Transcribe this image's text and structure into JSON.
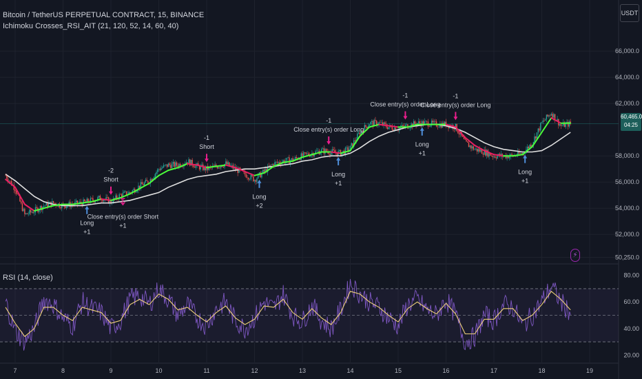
{
  "header": {
    "symbol": "Bitcoin / TetherUS PERPETUAL CONTRACT, 15, BINANCE",
    "indicator": "Ichimoku Crosses_RSI_AIT (21, 120, 52, 14, 60, 40)",
    "currency": "USDT"
  },
  "rsi_pane": {
    "label": "RSI (14, close)"
  },
  "price_tag": {
    "price": "60,465.0",
    "countdown": "04:25"
  },
  "icons": {
    "alert": "lightning-icon"
  },
  "colors": {
    "background": "#131722",
    "candle_up": "#26a69a",
    "candle_down": "#ef5350",
    "fast_line_up": "#4cff3a",
    "fast_line_down": "#e91e63",
    "slow_line": "#e0e0e0",
    "rsi_line": "#7e57c2",
    "rsi_ma": "#f0d27a",
    "signal_long": "#4f8fdb",
    "signal_short": "#e91e8c"
  },
  "chart_data": [
    {
      "type": "line",
      "title": "Bitcoin / TetherUS PERPETUAL CONTRACT, 15, BINANCE",
      "x_ticks": [
        "7",
        "8",
        "9",
        "10",
        "11",
        "12",
        "13",
        "14",
        "15",
        "16",
        "17",
        "18",
        "19"
      ],
      "y_ticks": [
        "66,000.0",
        "64,000.0",
        "62,000.0",
        "58,000.0",
        "56,000.0",
        "54,000.0",
        "52,000.0",
        "50,250.0"
      ],
      "ylim": [
        49800,
        67800
      ],
      "series": [
        {
          "role": "price",
          "x": [
            6.8,
            7.0,
            7.2,
            7.4,
            7.6,
            7.8,
            8.0,
            8.2,
            8.4,
            8.6,
            8.8,
            9.0,
            9.2,
            9.4,
            9.6,
            9.8,
            10.0,
            10.2,
            10.4,
            10.6,
            10.8,
            11.0,
            11.2,
            11.4,
            11.6,
            11.8,
            12.0,
            12.2,
            12.4,
            12.6,
            12.8,
            13.0,
            13.2,
            13.4,
            13.6,
            13.8,
            14.0,
            14.2,
            14.4,
            14.6,
            14.8,
            15.0,
            15.2,
            15.4,
            15.6,
            15.8,
            16.0,
            16.2,
            16.4,
            16.6,
            16.8,
            17.0,
            17.2,
            17.4,
            17.6,
            17.8,
            18.0,
            18.2,
            18.4,
            18.6
          ],
          "values": [
            56500,
            55500,
            53500,
            53800,
            54200,
            54400,
            54200,
            54300,
            54400,
            54600,
            54800,
            54500,
            55000,
            55200,
            55700,
            56100,
            57000,
            57300,
            57300,
            57600,
            57200,
            57000,
            57200,
            57400,
            57000,
            56600,
            56200,
            56800,
            57400,
            57600,
            57700,
            58000,
            58200,
            58400,
            58300,
            58200,
            58600,
            59800,
            60500,
            60500,
            60200,
            60100,
            60300,
            60500,
            60500,
            60400,
            60400,
            60200,
            59000,
            58500,
            58300,
            58000,
            58000,
            58000,
            58200,
            59000,
            60500,
            61300,
            60300,
            60465
          ]
        },
        {
          "role": "fast_line",
          "x": [
            6.8,
            7.0,
            7.2,
            7.4,
            7.6,
            7.8,
            8.0,
            8.2,
            8.4,
            8.6,
            8.8,
            9.0,
            9.2,
            9.4,
            9.6,
            9.8,
            10.0,
            10.2,
            10.4,
            10.6,
            10.8,
            11.0,
            11.2,
            11.4,
            11.6,
            11.8,
            12.0,
            12.2,
            12.4,
            12.6,
            12.8,
            13.0,
            13.2,
            13.4,
            13.6,
            13.8,
            14.0,
            14.2,
            14.4,
            14.6,
            14.8,
            15.0,
            15.2,
            15.4,
            15.6,
            15.8,
            16.0,
            16.2,
            16.4,
            16.6,
            16.8,
            17.0,
            17.2,
            17.4,
            17.6,
            17.8,
            18.0,
            18.2,
            18.4,
            18.6
          ],
          "values": [
            56200,
            55600,
            54300,
            53800,
            54000,
            54200,
            54300,
            54300,
            54400,
            54500,
            54700,
            54600,
            54800,
            55100,
            55500,
            55900,
            56500,
            56900,
            57100,
            57400,
            57300,
            57100,
            57200,
            57300,
            57100,
            56800,
            56500,
            56700,
            57200,
            57500,
            57600,
            57900,
            58100,
            58300,
            58300,
            58200,
            58400,
            59500,
            60200,
            60400,
            60300,
            60200,
            60200,
            60400,
            60400,
            60400,
            60400,
            60200,
            59400,
            58800,
            58400,
            58100,
            58000,
            58000,
            58100,
            58700,
            59800,
            60900,
            60500,
            60500
          ]
        },
        {
          "role": "slow_line",
          "x": [
            6.8,
            7.0,
            7.2,
            7.4,
            7.6,
            7.8,
            8.0,
            8.2,
            8.4,
            8.6,
            8.8,
            9.0,
            9.2,
            9.4,
            9.6,
            9.8,
            10.0,
            10.2,
            10.4,
            10.6,
            10.8,
            11.0,
            11.2,
            11.4,
            11.6,
            11.8,
            12.0,
            12.2,
            12.4,
            12.6,
            12.8,
            13.0,
            13.2,
            13.4,
            13.6,
            13.8,
            14.0,
            14.2,
            14.4,
            14.6,
            14.8,
            15.0,
            15.2,
            15.4,
            15.6,
            15.8,
            16.0,
            16.2,
            16.4,
            16.6,
            16.8,
            17.0,
            17.2,
            17.4,
            17.6,
            17.8,
            18.0,
            18.2,
            18.4,
            18.6
          ],
          "values": [
            56600,
            56100,
            55500,
            54900,
            54500,
            54300,
            54200,
            54200,
            54200,
            54300,
            54400,
            54400,
            54500,
            54600,
            54800,
            55000,
            55200,
            55600,
            55900,
            56200,
            56400,
            56500,
            56600,
            56800,
            56900,
            57000,
            57000,
            57100,
            57200,
            57300,
            57400,
            57600,
            57700,
            57900,
            58000,
            58000,
            58200,
            58600,
            59100,
            59500,
            59800,
            60000,
            60200,
            60300,
            60400,
            60400,
            60300,
            60100,
            59800,
            59400,
            59000,
            58700,
            58500,
            58400,
            58300,
            58300,
            58400,
            58800,
            59300,
            59800
          ]
        }
      ],
      "signals": [
        {
          "x": 8.5,
          "kind": "long",
          "lines": [
            "Long",
            "+1"
          ]
        },
        {
          "x": 9.0,
          "kind": "short",
          "lines": [
            "-2",
            "Short"
          ]
        },
        {
          "x": 9.25,
          "kind": "close_short",
          "lines": [
            "Close entry(s) order Short",
            "+1"
          ]
        },
        {
          "x": 11.0,
          "kind": "short",
          "lines": [
            "-1",
            "Short"
          ]
        },
        {
          "x": 12.1,
          "kind": "long",
          "lines": [
            "Long",
            "+2"
          ]
        },
        {
          "x": 13.55,
          "kind": "short",
          "lines": [
            "-1",
            "Close entry(s) order Long"
          ]
        },
        {
          "x": 13.75,
          "kind": "long",
          "lines": [
            "Long",
            "+1"
          ]
        },
        {
          "x": 15.15,
          "kind": "short",
          "lines": [
            "-1",
            "Close entry(s) order Long"
          ]
        },
        {
          "x": 15.5,
          "kind": "long",
          "lines": [
            "Long",
            "+1"
          ]
        },
        {
          "x": 16.2,
          "kind": "short",
          "lines": [
            "-1",
            "Close entry(s) order Long"
          ]
        },
        {
          "x": 17.65,
          "kind": "long",
          "lines": [
            "Long",
            "+1"
          ]
        }
      ]
    },
    {
      "type": "line",
      "title": "RSI (14, close)",
      "y_ticks": [
        "80.00",
        "60.00",
        "40.00",
        "20.00"
      ],
      "ylim": [
        15,
        85
      ],
      "bands": [
        70,
        50,
        30
      ],
      "series": [
        {
          "role": "rsi",
          "x": [
            6.8,
            7.0,
            7.2,
            7.4,
            7.6,
            7.8,
            8.0,
            8.2,
            8.4,
            8.6,
            8.8,
            9.0,
            9.2,
            9.4,
            9.6,
            9.8,
            10.0,
            10.2,
            10.4,
            10.6,
            10.8,
            11.0,
            11.2,
            11.4,
            11.6,
            11.8,
            12.0,
            12.2,
            12.4,
            12.6,
            12.8,
            13.0,
            13.2,
            13.4,
            13.6,
            13.8,
            14.0,
            14.2,
            14.4,
            14.6,
            14.8,
            15.0,
            15.2,
            15.4,
            15.6,
            15.8,
            16.0,
            16.2,
            16.4,
            16.6,
            16.8,
            17.0,
            17.2,
            17.4,
            17.6,
            17.8,
            18.0,
            18.2,
            18.4,
            18.6
          ],
          "values": [
            60,
            38,
            30,
            40,
            62,
            58,
            48,
            42,
            60,
            55,
            52,
            40,
            46,
            62,
            65,
            58,
            70,
            62,
            50,
            58,
            48,
            42,
            55,
            60,
            46,
            40,
            48,
            60,
            55,
            66,
            50,
            45,
            58,
            46,
            40,
            54,
            74,
            66,
            60,
            56,
            48,
            42,
            58,
            62,
            54,
            50,
            62,
            50,
            30,
            34,
            50,
            46,
            58,
            56,
            42,
            50,
            60,
            72,
            60,
            52
          ]
        },
        {
          "role": "rsi_ma",
          "x": [
            6.8,
            7.0,
            7.2,
            7.4,
            7.6,
            7.8,
            8.0,
            8.2,
            8.4,
            8.6,
            8.8,
            9.0,
            9.2,
            9.4,
            9.6,
            9.8,
            10.0,
            10.2,
            10.4,
            10.6,
            10.8,
            11.0,
            11.2,
            11.4,
            11.6,
            11.8,
            12.0,
            12.2,
            12.4,
            12.6,
            12.8,
            13.0,
            13.2,
            13.4,
            13.6,
            13.8,
            14.0,
            14.2,
            14.4,
            14.6,
            14.8,
            15.0,
            15.2,
            15.4,
            15.6,
            15.8,
            16.0,
            16.2,
            16.4,
            16.6,
            16.8,
            17.0,
            17.2,
            17.4,
            17.6,
            17.8,
            18.0,
            18.2,
            18.4,
            18.6
          ],
          "values": [
            56,
            44,
            34,
            40,
            56,
            56,
            50,
            46,
            56,
            54,
            52,
            44,
            46,
            58,
            62,
            58,
            66,
            62,
            54,
            56,
            50,
            45,
            52,
            57,
            48,
            43,
            47,
            57,
            56,
            62,
            52,
            47,
            55,
            48,
            43,
            52,
            68,
            66,
            60,
            56,
            50,
            45,
            55,
            60,
            55,
            51,
            59,
            51,
            36,
            36,
            47,
            47,
            55,
            55,
            46,
            50,
            58,
            68,
            62,
            54
          ]
        }
      ]
    }
  ]
}
